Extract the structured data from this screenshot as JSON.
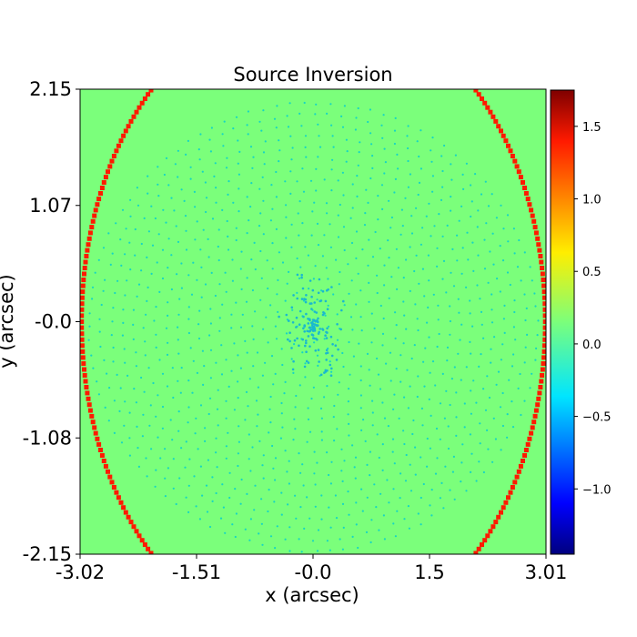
{
  "chart_data": {
    "type": "heatmap",
    "title": "Source Inversion",
    "xlabel": "x (arcsec)",
    "ylabel": "y (arcsec)",
    "xlim": [
      -3.02,
      3.01
    ],
    "ylim": [
      -2.15,
      2.15
    ],
    "x_ticks": [
      "-3.02",
      "-1.51",
      "-0.0",
      "1.5",
      "3.01"
    ],
    "y_ticks": [
      "2.15",
      "1.07",
      "-0.0",
      "-1.08",
      "-2.15"
    ],
    "colorbar": {
      "range": [
        -1.45,
        1.75
      ],
      "ticks": [
        "1.5",
        "1.0",
        "0.5",
        "0.0",
        "−0.5",
        "−1.0"
      ],
      "tick_values": [
        1.5,
        1.0,
        0.5,
        0.0,
        -0.5,
        -1.0
      ],
      "colormap": "jet"
    },
    "background_value": 0.15,
    "border": {
      "shape": "circle",
      "center": [
        0.0,
        0.0
      ],
      "radius_arcsec": 3.0,
      "value": 1.75,
      "color": "#ff1a00"
    },
    "pixelization_points": {
      "style": "concentric-rings",
      "color": "#16d6c2",
      "center_cluster_color": "#1ab8cf",
      "center": [
        0.0,
        -0.05
      ]
    },
    "colors": {
      "background": "#7bff7b",
      "border": "#ff1a00",
      "points": "#16d6c2"
    }
  }
}
